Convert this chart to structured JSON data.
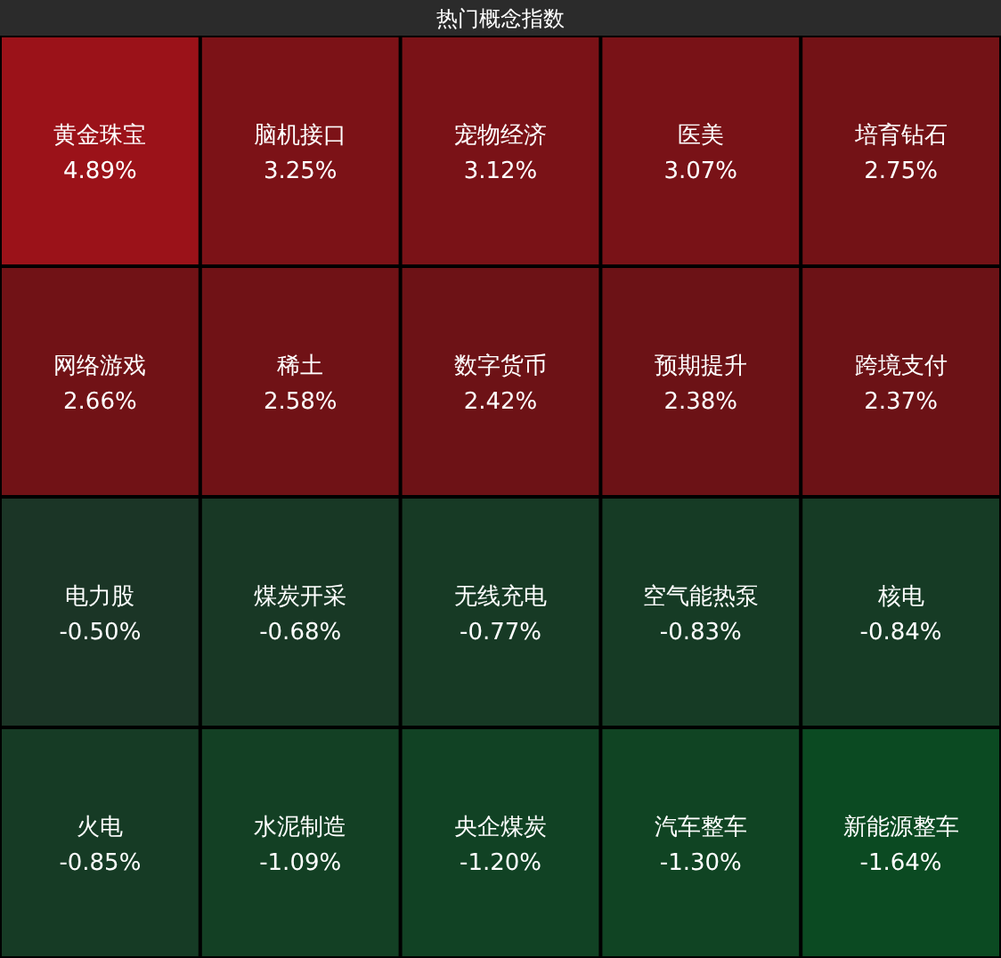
{
  "chart_data": {
    "type": "other",
    "title": "热门概念指数",
    "categories": [
      "黄金珠宝",
      "脑机接口",
      "宠物经济",
      "医美",
      "培育钻石",
      "网络游戏",
      "稀土",
      "数字货币",
      "预期提升",
      "跨境支付",
      "电力股",
      "煤炭开采",
      "无线充电",
      "空气能热泵",
      "核电",
      "火电",
      "水泥制造",
      "央企煤炭",
      "汽车整车",
      "新能源整车"
    ],
    "values": [
      4.89,
      3.25,
      3.12,
      3.07,
      2.75,
      2.66,
      2.58,
      2.42,
      2.38,
      2.37,
      -0.5,
      -0.68,
      -0.77,
      -0.83,
      -0.84,
      -0.85,
      -1.09,
      -1.2,
      -1.3,
      -1.64
    ],
    "value_labels": [
      "4.89%",
      "3.25%",
      "3.12%",
      "3.07%",
      "2.75%",
      "2.66%",
      "2.58%",
      "2.42%",
      "2.38%",
      "2.37%",
      "-0.50%",
      "-0.68%",
      "-0.77%",
      "-0.83%",
      "-0.84%",
      "-0.85%",
      "-1.09%",
      "-1.20%",
      "-1.30%",
      "-1.64%"
    ]
  }
}
